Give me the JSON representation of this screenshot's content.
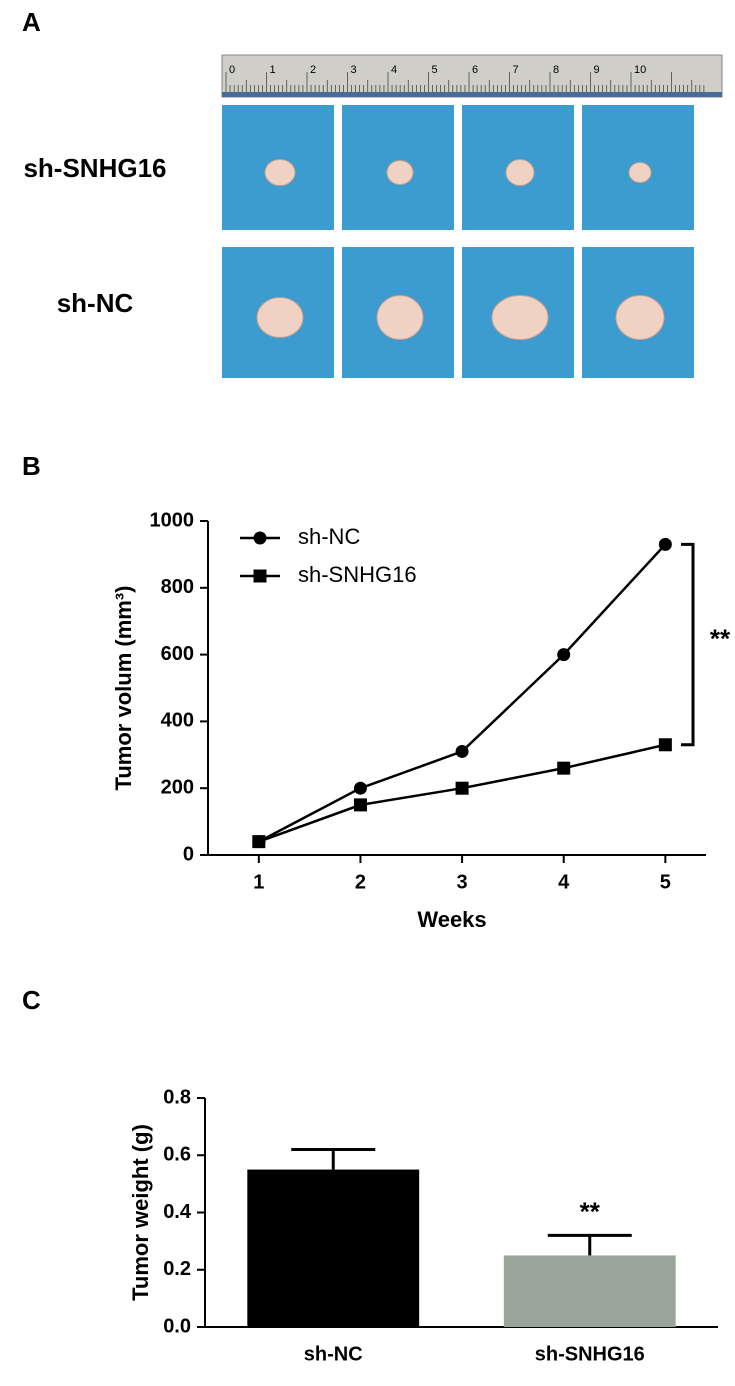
{
  "panel_a": {
    "label": "A",
    "ruler_labels": [
      0,
      1,
      2,
      3,
      4,
      5,
      6,
      7,
      8,
      9,
      10
    ],
    "rows": [
      "sh-SNHG16",
      "sh-NC"
    ]
  },
  "chart_data": [
    {
      "type": "line",
      "panel_label": "B",
      "xlabel": "Weeks",
      "ylabel": "Tumor volum (mm³)",
      "x": [
        1,
        2,
        3,
        4,
        5
      ],
      "xlim": [
        0.5,
        5.4
      ],
      "xticks": [
        1,
        2,
        3,
        4,
        5
      ],
      "ylim": [
        0,
        1000
      ],
      "yticks": [
        0,
        200,
        400,
        600,
        800,
        1000
      ],
      "legend": "upper left",
      "annotation": "**",
      "series": [
        {
          "name": "sh-NC",
          "color": "#000000",
          "marker": "circle",
          "values": [
            40,
            200,
            310,
            600,
            930
          ]
        },
        {
          "name": "sh-SNHG16",
          "color": "#000000",
          "marker": "square",
          "values": [
            40,
            150,
            200,
            260,
            330
          ]
        }
      ]
    },
    {
      "type": "bar",
      "panel_label": "C",
      "ylabel": "Tumor weight (g)",
      "categories": [
        "sh-NC",
        "sh-SNHG16"
      ],
      "values": [
        0.55,
        0.25
      ],
      "errors": [
        0.07,
        0.07
      ],
      "colors": [
        "#000000",
        "#9aa59a"
      ],
      "ylim": [
        0,
        0.8
      ],
      "yticks": [
        {
          "value": 0,
          "label": "0.0"
        },
        0.2,
        0.4,
        0.6,
        0.8
      ],
      "annotation": "**"
    }
  ]
}
